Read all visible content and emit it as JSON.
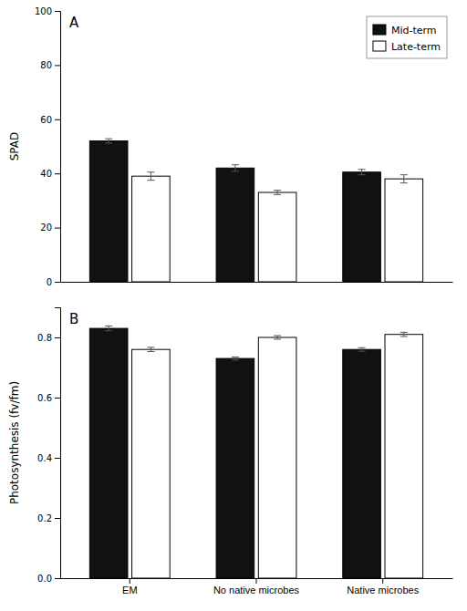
{
  "chart_data": [
    {
      "type": "bar",
      "title": "A",
      "ylabel": "SPAD",
      "categories": [
        "EM",
        "No native microbes",
        "Native microbes"
      ],
      "series": [
        {
          "name": "Mid-term",
          "color": "#111111",
          "values": [
            52.0,
            42.0,
            40.5
          ],
          "errors": [
            0.8,
            1.2,
            1.0
          ]
        },
        {
          "name": "Late-term",
          "color": "#ffffff",
          "values": [
            39.0,
            33.0,
            38.0
          ],
          "errors": [
            1.5,
            0.8,
            1.5
          ]
        }
      ],
      "ylim": [
        0,
        100
      ],
      "yticks": [
        0,
        20,
        40,
        60,
        80,
        100
      ],
      "grid": false,
      "legend": "top-right",
      "tick_labels": "y"
    },
    {
      "type": "bar",
      "title": "B",
      "ylabel": "Photosynthesis (fv/fm)",
      "categories": [
        "EM",
        "No native microbes",
        "Native microbes"
      ],
      "series": [
        {
          "color": "#111111",
          "values": [
            0.83,
            0.73,
            0.76
          ],
          "errors": [
            0.008,
            0.005,
            0.006
          ]
        },
        {
          "color": "#ffffff",
          "values": [
            0.76,
            0.8,
            0.81
          ],
          "errors": [
            0.007,
            0.006,
            0.007
          ]
        }
      ],
      "ylim": [
        0.0,
        0.9
      ],
      "yticks": [
        {
          "value": 0.0,
          "label": "0.0"
        },
        0.2,
        0.4,
        0.6,
        0.8
      ],
      "grid": false
    }
  ]
}
